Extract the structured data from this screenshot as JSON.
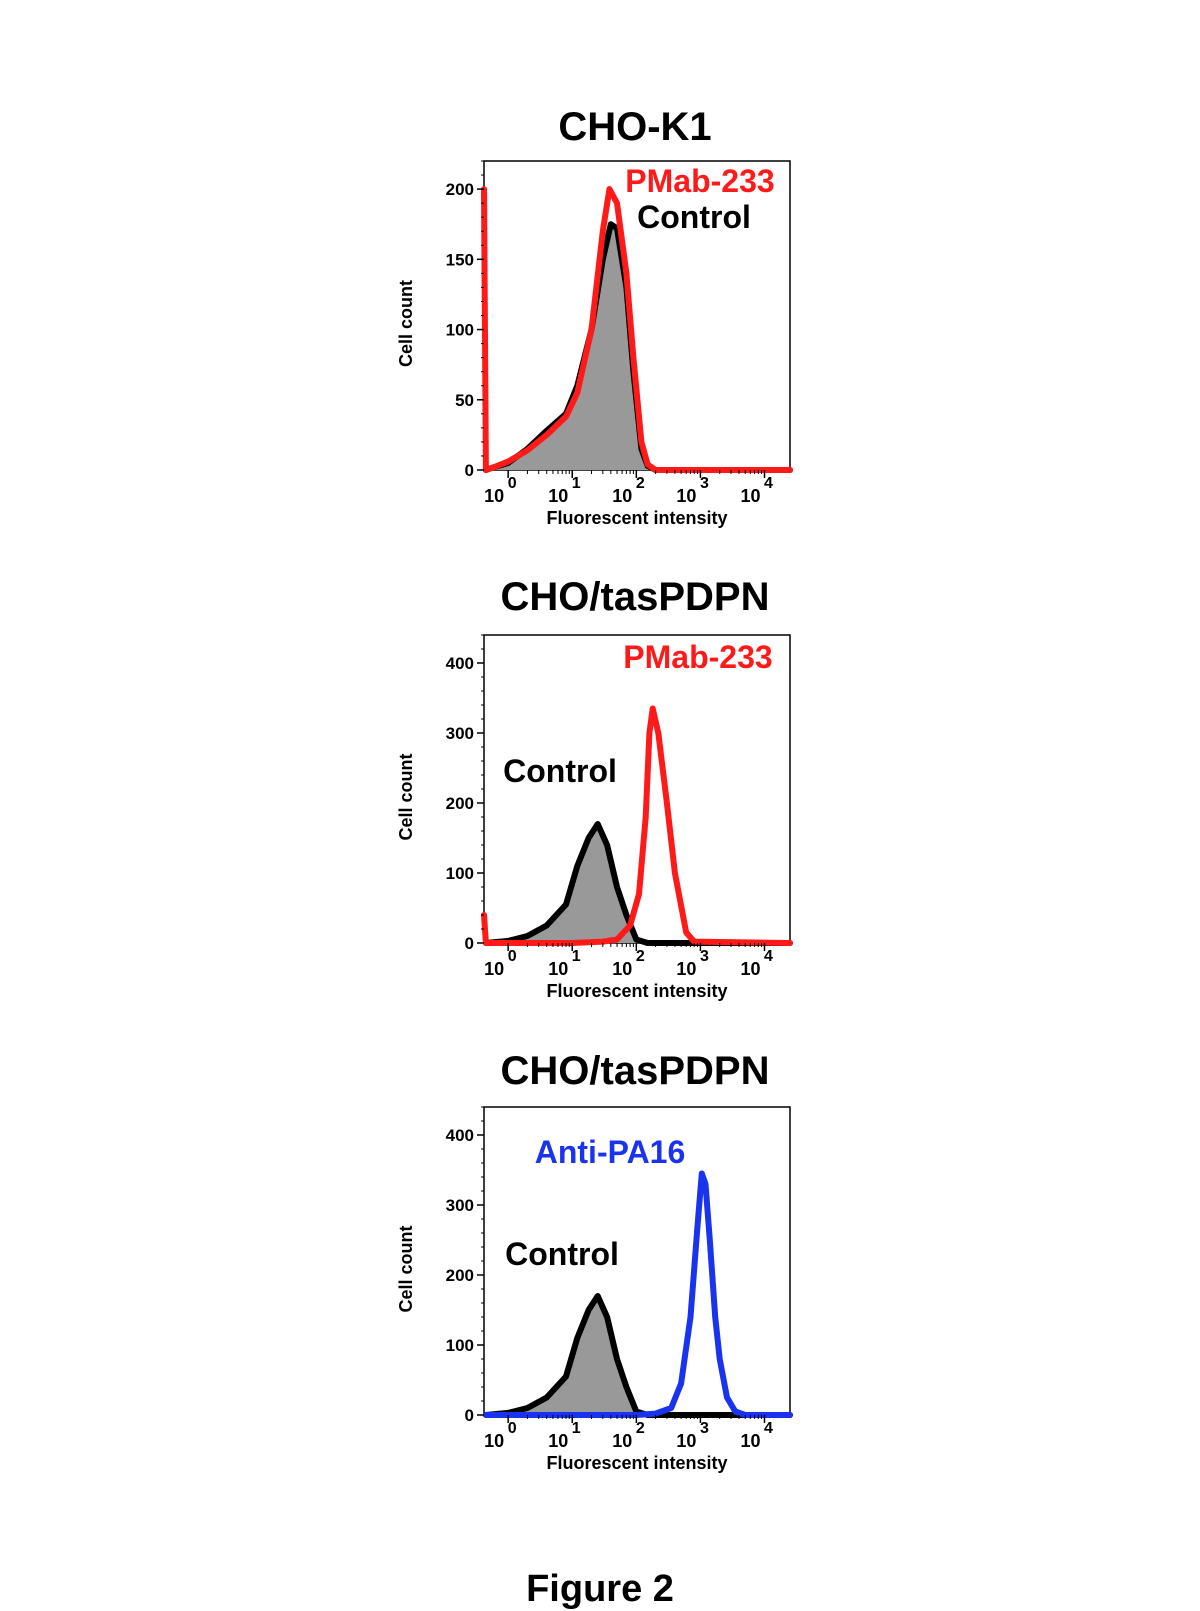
{
  "figure_caption": "Figure 2",
  "colors": {
    "pmab": "#ff1a1a",
    "control": "#000000",
    "control_fill": "#999999",
    "anti_pa16": "#1a33ee"
  },
  "chart_data": [
    {
      "type": "histogram",
      "title": "CHO-K1",
      "xlabel": "Fluorescent intensity",
      "ylabel": "Cell count",
      "x_scale": "log",
      "xlim": [
        0.42,
        25000
      ],
      "ylim": [
        0,
        220
      ],
      "x_tick_labels": [
        "10",
        "10",
        "10",
        "10",
        "10"
      ],
      "x_tick_exponents": [
        "0",
        "1",
        "2",
        "3",
        "4"
      ],
      "y_ticks": [
        0,
        50,
        100,
        150,
        200
      ],
      "y_tick_labels": [
        "0",
        "50",
        "100",
        "150",
        "200"
      ],
      "series": [
        {
          "name": "Control",
          "color": "#000000",
          "fill": "#999999",
          "x": [
            0.45,
            0.6,
            1,
            2,
            4,
            8,
            12,
            20,
            30,
            40,
            50,
            70,
            90,
            120,
            150,
            200,
            400,
            25000
          ],
          "y": [
            0,
            2,
            5,
            15,
            28,
            40,
            60,
            100,
            150,
            175,
            172,
            130,
            70,
            15,
            3,
            0,
            0,
            0
          ]
        },
        {
          "name": "PMab-233",
          "color": "#ff1a1a",
          "fill": null,
          "x": [
            0.42,
            0.45,
            0.6,
            1,
            2,
            4,
            8,
            12,
            20,
            30,
            38,
            50,
            70,
            90,
            120,
            150,
            200,
            400,
            25000
          ],
          "y": [
            200,
            0,
            2,
            6,
            14,
            25,
            38,
            55,
            100,
            170,
            200,
            190,
            140,
            80,
            20,
            4,
            0,
            0,
            0
          ]
        }
      ],
      "annotations": [
        {
          "text": "PMab-233",
          "color": "#ff1a1a",
          "x": 300,
          "y": 200
        },
        {
          "text": "Control",
          "color": "#000000",
          "x": 300,
          "y": 175
        }
      ]
    },
    {
      "type": "histogram",
      "title": "CHO/tasPDPN",
      "xlabel": "Fluorescent intensity",
      "ylabel": "Cell count",
      "x_scale": "log",
      "xlim": [
        0.42,
        25000
      ],
      "ylim": [
        0,
        440
      ],
      "x_tick_labels": [
        "10",
        "10",
        "10",
        "10",
        "10"
      ],
      "x_tick_exponents": [
        "0",
        "1",
        "2",
        "3",
        "4"
      ],
      "y_ticks": [
        0,
        100,
        200,
        300,
        400
      ],
      "y_tick_labels": [
        "0",
        "100",
        "200",
        "300",
        "400"
      ],
      "series": [
        {
          "name": "Control",
          "color": "#000000",
          "fill": "#999999",
          "x": [
            0.45,
            1,
            2,
            4,
            8,
            12,
            18,
            25,
            35,
            50,
            70,
            100,
            150,
            25000
          ],
          "y": [
            0,
            3,
            10,
            25,
            55,
            110,
            150,
            170,
            140,
            80,
            40,
            5,
            0,
            0
          ]
        },
        {
          "name": "PMab-233",
          "color": "#ff1a1a",
          "fill": null,
          "x": [
            0.42,
            0.45,
            1,
            10,
            30,
            50,
            80,
            110,
            140,
            160,
            180,
            220,
            300,
            400,
            600,
            800,
            25000
          ],
          "y": [
            40,
            0,
            0,
            0,
            2,
            5,
            25,
            70,
            180,
            300,
            335,
            300,
            200,
            100,
            15,
            2,
            0
          ]
        }
      ],
      "annotations": [
        {
          "text": "PMab-233",
          "color": "#ff1a1a",
          "x": 600,
          "y": 390
        },
        {
          "text": "Control",
          "color": "#000000",
          "x": 30,
          "y": 215
        }
      ]
    },
    {
      "type": "histogram",
      "title": "CHO/tasPDPN",
      "xlabel": "Fluorescent intensity",
      "ylabel": "Cell count",
      "x_scale": "log",
      "xlim": [
        0.42,
        25000
      ],
      "ylim": [
        0,
        440
      ],
      "x_tick_labels": [
        "10",
        "10",
        "10",
        "10",
        "10"
      ],
      "x_tick_exponents": [
        "0",
        "1",
        "2",
        "3",
        "4"
      ],
      "y_ticks": [
        0,
        100,
        200,
        300,
        400
      ],
      "y_tick_labels": [
        "0",
        "100",
        "200",
        "300",
        "400"
      ],
      "series": [
        {
          "name": "Control",
          "color": "#000000",
          "fill": "#999999",
          "x": [
            0.45,
            1,
            2,
            4,
            8,
            12,
            18,
            25,
            35,
            50,
            70,
            100,
            150,
            25000
          ],
          "y": [
            0,
            3,
            10,
            25,
            55,
            110,
            150,
            170,
            140,
            80,
            40,
            5,
            0,
            0
          ]
        },
        {
          "name": "Anti-PA16",
          "color": "#1a33ee",
          "fill": null,
          "x": [
            0.45,
            100,
            200,
            350,
            500,
            700,
            900,
            1050,
            1200,
            1400,
            1700,
            2000,
            2600,
            3500,
            5000,
            25000
          ],
          "y": [
            0,
            0,
            2,
            10,
            45,
            140,
            270,
            345,
            330,
            250,
            140,
            80,
            25,
            5,
            0,
            0
          ]
        }
      ],
      "annotations": [
        {
          "text": "Anti-PA16",
          "color": "#1a33ee",
          "x": 8,
          "y": 325
        },
        {
          "text": "Control",
          "color": "#000000",
          "x": 30,
          "y": 210
        }
      ]
    }
  ]
}
